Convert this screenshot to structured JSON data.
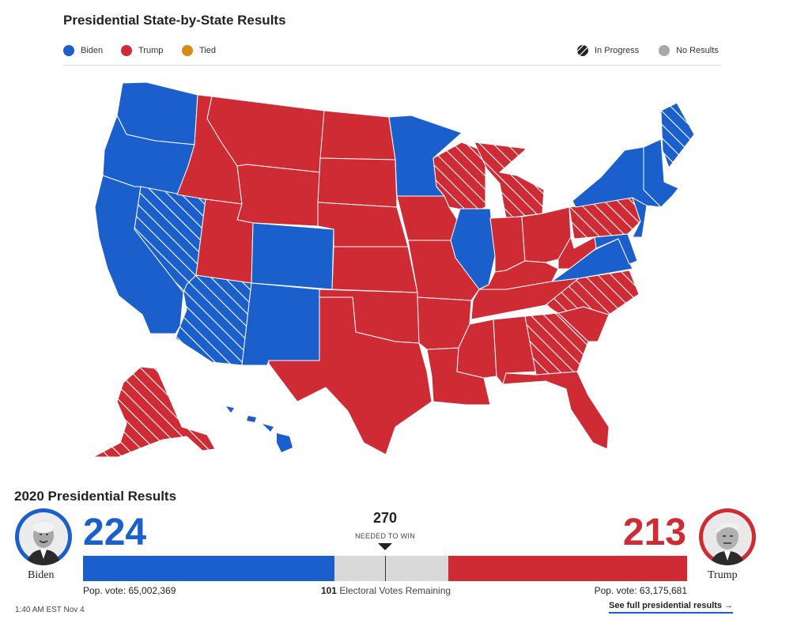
{
  "map_title": "Presidential State-by-State Results",
  "legend": [
    {
      "label": "Biden",
      "color": "#1a5fcc",
      "pattern": "solid"
    },
    {
      "label": "Trump",
      "color": "#cf2b35",
      "pattern": "solid"
    },
    {
      "label": "Tied",
      "color": "#d88a12",
      "pattern": "solid"
    },
    {
      "label": "In Progress",
      "color": "#222222",
      "pattern": "hatched"
    },
    {
      "label": "No Results",
      "color": "#a9a9a9",
      "pattern": "solid"
    }
  ],
  "colors": {
    "biden": "#1a5fcc",
    "trump": "#cf2b35",
    "tied": "#d88a12",
    "in_progress": "#222222",
    "no_results": "#a9a9a9",
    "bar_remaining": "#d9d9d9"
  },
  "chart_data": {
    "type": "map",
    "title": "Presidential State-by-State Results",
    "states": [
      {
        "state": "WA",
        "status": "Biden"
      },
      {
        "state": "OR",
        "status": "Biden"
      },
      {
        "state": "CA",
        "status": "Biden"
      },
      {
        "state": "NV",
        "status": "In Progress",
        "leader": "Biden"
      },
      {
        "state": "AZ",
        "status": "In Progress",
        "leader": "Biden"
      },
      {
        "state": "CO",
        "status": "Biden"
      },
      {
        "state": "NM",
        "status": "Biden"
      },
      {
        "state": "MN",
        "status": "Biden"
      },
      {
        "state": "IL",
        "status": "Biden"
      },
      {
        "state": "VA",
        "status": "Biden"
      },
      {
        "state": "NY",
        "status": "Biden"
      },
      {
        "state": "NJ",
        "status": "Biden"
      },
      {
        "state": "NE-New England",
        "status": "Biden"
      },
      {
        "state": "DE/MD",
        "status": "Biden"
      },
      {
        "state": "ME",
        "status": "In Progress",
        "leader": "Biden"
      },
      {
        "state": "HI",
        "status": "Biden"
      },
      {
        "state": "ID",
        "status": "Trump"
      },
      {
        "state": "MT",
        "status": "Trump"
      },
      {
        "state": "WY",
        "status": "Trump"
      },
      {
        "state": "UT",
        "status": "Trump"
      },
      {
        "state": "ND",
        "status": "Trump"
      },
      {
        "state": "SD",
        "status": "Trump"
      },
      {
        "state": "NE",
        "status": "Trump"
      },
      {
        "state": "KS",
        "status": "Trump"
      },
      {
        "state": "OK",
        "status": "Trump"
      },
      {
        "state": "TX",
        "status": "Trump"
      },
      {
        "state": "IA",
        "status": "Trump"
      },
      {
        "state": "MO",
        "status": "Trump"
      },
      {
        "state": "AR",
        "status": "Trump"
      },
      {
        "state": "LA",
        "status": "Trump"
      },
      {
        "state": "MS",
        "status": "Trump"
      },
      {
        "state": "AL",
        "status": "Trump"
      },
      {
        "state": "TN",
        "status": "Trump"
      },
      {
        "state": "KY",
        "status": "Trump"
      },
      {
        "state": "IN",
        "status": "Trump"
      },
      {
        "state": "OH",
        "status": "Trump"
      },
      {
        "state": "WV",
        "status": "Trump"
      },
      {
        "state": "SC",
        "status": "Trump"
      },
      {
        "state": "FL",
        "status": "Trump"
      },
      {
        "state": "WI",
        "status": "In Progress",
        "leader": "Trump"
      },
      {
        "state": "MI",
        "status": "In Progress",
        "leader": "Trump"
      },
      {
        "state": "PA",
        "status": "In Progress",
        "leader": "Trump"
      },
      {
        "state": "NC",
        "status": "In Progress",
        "leader": "Trump"
      },
      {
        "state": "GA",
        "status": "In Progress",
        "leader": "Trump"
      },
      {
        "state": "AK",
        "status": "In Progress",
        "leader": "Trump"
      }
    ]
  },
  "results": {
    "title": "2020 Presidential Results",
    "biden": {
      "name": "Biden",
      "electoral_votes": "224",
      "pop_vote": "Pop. vote: 65,002,369"
    },
    "trump": {
      "name": "Trump",
      "electoral_votes": "213",
      "pop_vote": "Pop. vote: 63,175,681"
    },
    "needed": "270",
    "needed_label": "NEEDED TO WIN",
    "remaining_count": "101",
    "remaining_label": "Electoral Votes Remaining",
    "total_ev": 538,
    "biden_ev": 224,
    "trump_ev": 213
  },
  "footer": {
    "timestamp": "1:40 AM EST Nov 4",
    "link_label": "See full presidential results",
    "link_arrow": "→"
  }
}
